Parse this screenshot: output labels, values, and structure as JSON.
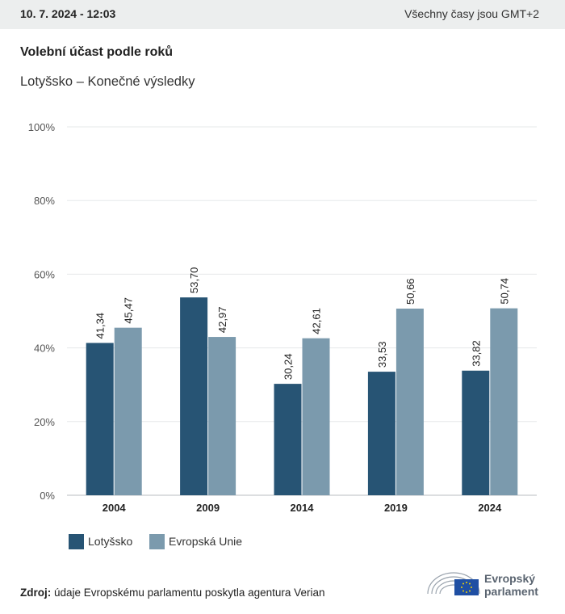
{
  "header": {
    "date": "10. 7. 2024 - 12:03",
    "timezone_note": "Všechny časy jsou GMT+2"
  },
  "title": "Volební účast podle roků",
  "subtitle": "Lotyšsko – Konečné výsledky",
  "source": {
    "label": "Zdroj:",
    "text": "údaje Evropskému parlamentu poskytla agentura Verian"
  },
  "logo": {
    "line1": "Evropský",
    "line2": "parlament"
  },
  "chart_data": {
    "type": "bar",
    "categories": [
      "2004",
      "2009",
      "2014",
      "2019",
      "2024"
    ],
    "series": [
      {
        "name": "Lotyšsko",
        "color": "#275474",
        "values": [
          41.34,
          53.7,
          30.24,
          33.53,
          33.82
        ],
        "labels": [
          "41,34",
          "53,70",
          "30,24",
          "33,53",
          "33,82"
        ]
      },
      {
        "name": "Evropská Unie",
        "color": "#7b9aad",
        "values": [
          45.47,
          42.97,
          42.61,
          50.66,
          50.74
        ],
        "labels": [
          "45,47",
          "42,97",
          "42,61",
          "50,66",
          "50,74"
        ]
      }
    ],
    "ylim": [
      0,
      100
    ],
    "yticks": [
      0,
      20,
      40,
      60,
      80,
      100
    ],
    "ytick_labels": [
      "0%",
      "20%",
      "40%",
      "60%",
      "80%",
      "100%"
    ],
    "grid": true,
    "legend_position": "bottom-left"
  }
}
